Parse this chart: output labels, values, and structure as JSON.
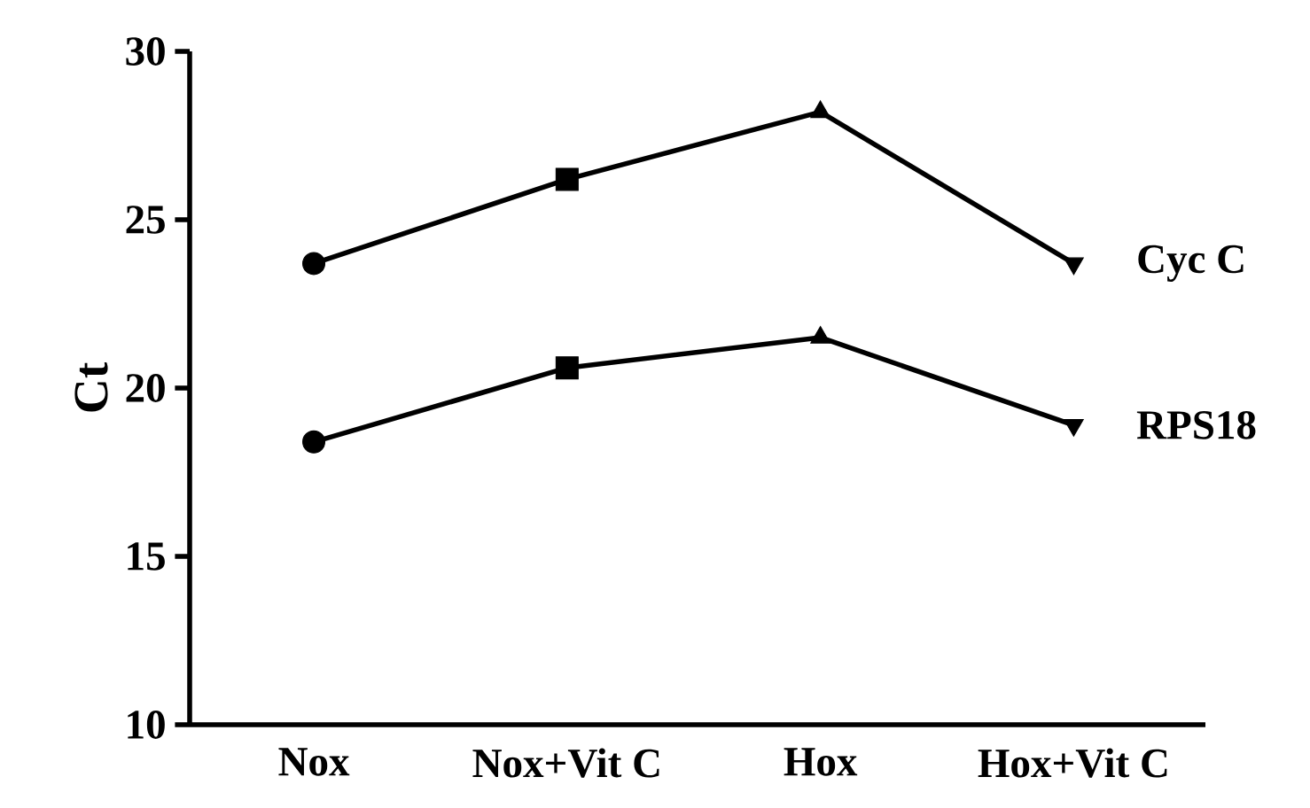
{
  "chart_data": {
    "type": "line",
    "ylabel": "Ct",
    "categories": [
      "Nox",
      "Nox+Vit C",
      "Hox",
      "Hox+Vit C"
    ],
    "series": [
      {
        "name": "Cyc C",
        "color": "#000000",
        "values": [
          23.7,
          26.2,
          28.2,
          23.7
        ]
      },
      {
        "name": "RPS18",
        "color": "#000000",
        "values": [
          18.4,
          20.6,
          21.5,
          18.9
        ]
      }
    ],
    "marker": [
      "circle",
      "square",
      "triangle",
      "triangle down"
    ],
    "line_style": "solid",
    "ylim": [
      10,
      30
    ],
    "yticks": [
      10,
      15,
      20,
      25,
      30
    ],
    "grid": false
  }
}
